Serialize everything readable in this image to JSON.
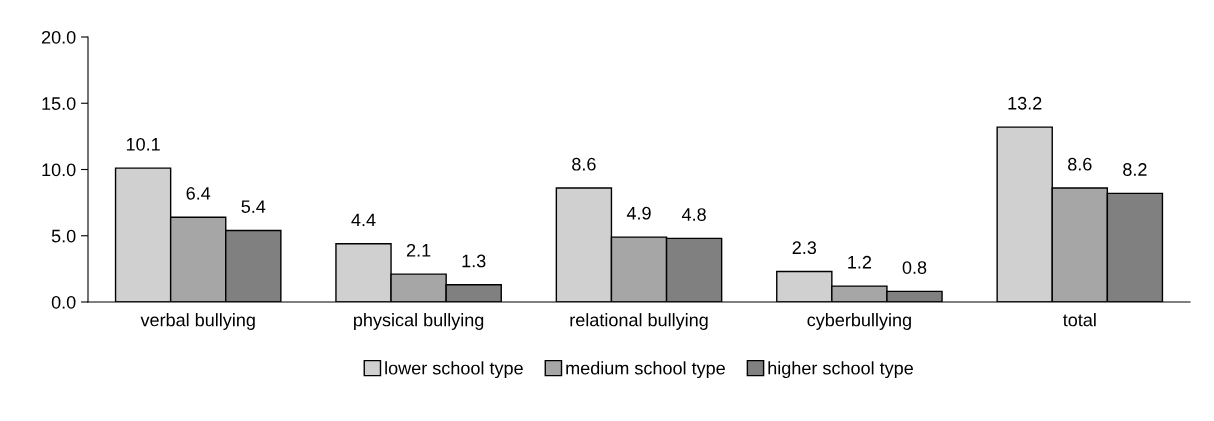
{
  "chart_data": {
    "type": "bar",
    "categories": [
      "verbal bullying",
      "physical bullying",
      "relational bullying",
      "cyberbullying",
      "total"
    ],
    "series": [
      {
        "name": "lower school type",
        "color": "#d0d0d0",
        "values": [
          10.1,
          4.4,
          8.6,
          2.3,
          13.2
        ]
      },
      {
        "name": "medium school type",
        "color": "#a6a6a6",
        "values": [
          6.4,
          2.1,
          4.9,
          1.2,
          8.6
        ]
      },
      {
        "name": "higher school type",
        "color": "#808080",
        "values": [
          5.4,
          1.3,
          4.8,
          0.8,
          8.2
        ]
      }
    ],
    "ylim": [
      0,
      20
    ],
    "yticks": [
      {
        "value": 0,
        "label": "0.0"
      },
      {
        "value": 5,
        "label": "5.0"
      },
      {
        "value": 10,
        "label": "10.0"
      },
      {
        "value": 15,
        "label": "15.0"
      },
      {
        "value": 20,
        "label": "20.0"
      }
    ],
    "data_labels": true,
    "grid": false,
    "legend": "bottom"
  }
}
